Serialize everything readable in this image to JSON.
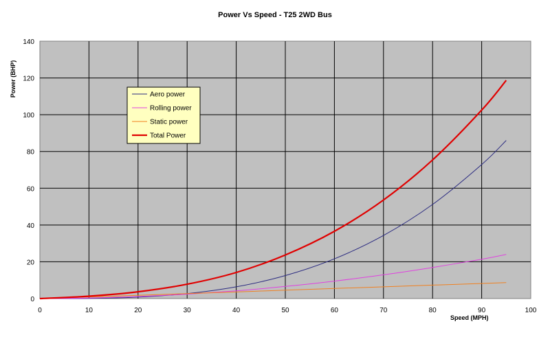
{
  "chart_data": {
    "type": "line",
    "title": "Power Vs Speed - T25 2WD Bus",
    "xlabel": "Speed (MPH)",
    "ylabel": "Power (BHP)",
    "xlim": [
      0,
      100
    ],
    "ylim": [
      0,
      140
    ],
    "xticks": [
      0,
      10,
      20,
      30,
      40,
      50,
      60,
      70,
      80,
      90,
      100
    ],
    "yticks": [
      0,
      20,
      40,
      60,
      80,
      100,
      120,
      140
    ],
    "grid": true,
    "legend_position": "top-left",
    "plot_background": "#c0c0c0",
    "x": [
      0,
      10,
      20,
      30,
      40,
      50,
      60,
      70,
      80,
      90,
      95
    ],
    "series": [
      {
        "name": "Aero power",
        "color": "#2a2a80",
        "values": [
          0,
          0.1,
          0.8,
          2.7,
          6.4,
          12.5,
          21.6,
          34.3,
          51.2,
          72.9,
          86.0
        ]
      },
      {
        "name": "Rolling power",
        "color": "#e040e0",
        "values": [
          0,
          0.3,
          1.1,
          2.4,
          4.2,
          6.6,
          9.5,
          12.9,
          16.9,
          21.4,
          24.0
        ]
      },
      {
        "name": "Static power",
        "color": "#f08020",
        "values": [
          0,
          0.9,
          1.8,
          2.7,
          3.6,
          4.6,
          5.5,
          6.4,
          7.3,
          8.2,
          8.7
        ]
      },
      {
        "name": "Total Power",
        "color": "#e00000",
        "values": [
          0,
          1.3,
          3.7,
          7.8,
          14.2,
          23.7,
          36.6,
          53.6,
          75.4,
          102.5,
          118.7
        ]
      }
    ]
  }
}
